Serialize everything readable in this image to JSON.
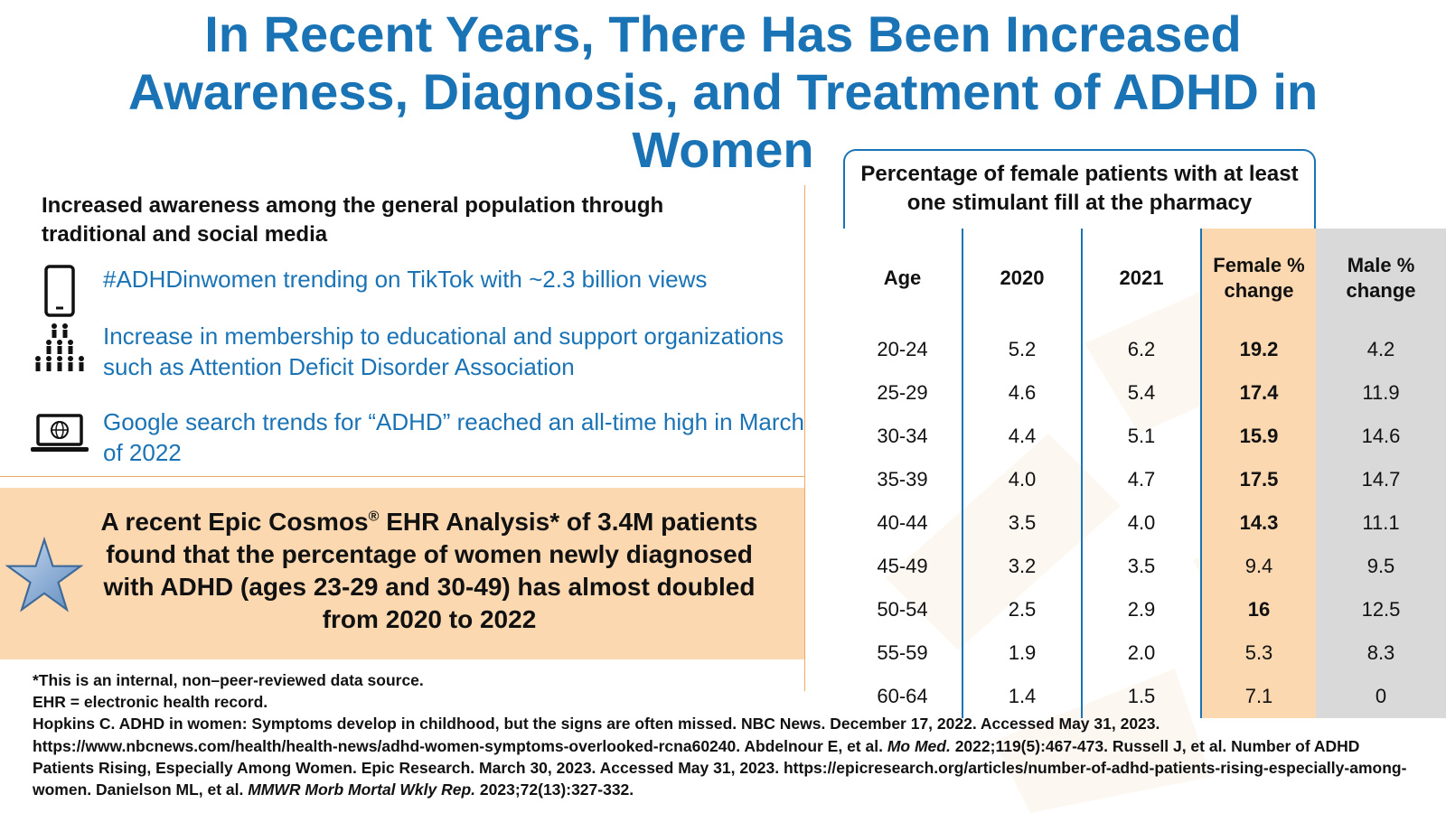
{
  "title": {
    "line1": "In Recent Years, There Has Been Increased",
    "line2": "Awareness, Diagnosis, and Treatment of ADHD in",
    "line3": "Women"
  },
  "awareness": {
    "heading": "Increased awareness among the general population through traditional and social media",
    "bullets": [
      {
        "icon": "smartphone-icon",
        "text": "#ADHDinwomen trending on TikTok with ~2.3 billion views"
      },
      {
        "icon": "people-group-icon",
        "text": "Increase in membership to educational and support organizations such as Attention Deficit Disorder Association"
      },
      {
        "icon": "laptop-globe-icon",
        "text": "Google search trends for “ADHD” reached an all-time high in March of 2022"
      }
    ]
  },
  "epic": {
    "icon": "star-icon",
    "text_before": "A recent Epic Cosmos",
    "registered": "®",
    "text_after": " EHR Analysis* of 3.4M patients found that the percentage of women newly diagnosed with ADHD (ages 23-29 and 30-49) has almost doubled from 2020 to 2022"
  },
  "table": {
    "caption": "Percentage of female patients with at least one stimulant fill at the pharmacy",
    "headers": {
      "age": "Age",
      "y2020": "2020",
      "y2021": "2021",
      "female_change": "Female % change",
      "male_change": "Male % change"
    },
    "rows": [
      {
        "age": "20-24",
        "y2020": "5.2",
        "y2021": "6.2",
        "female": "19.2",
        "male": "4.2"
      },
      {
        "age": "25-29",
        "y2020": "4.6",
        "y2021": "5.4",
        "female": "17.4",
        "male": "11.9"
      },
      {
        "age": "30-34",
        "y2020": "4.4",
        "y2021": "5.1",
        "female": "15.9",
        "male": "14.6"
      },
      {
        "age": "35-39",
        "y2020": "4.0",
        "y2021": "4.7",
        "female": "17.5",
        "male": "14.7"
      },
      {
        "age": "40-44",
        "y2020": "3.5",
        "y2021": "4.0",
        "female": "14.3",
        "male": "11.1"
      },
      {
        "age": "45-49",
        "y2020": "3.2",
        "y2021": "3.5",
        "female": "9.4",
        "male": "9.5"
      },
      {
        "age": "50-54",
        "y2020": "2.5",
        "y2021": "2.9",
        "female": "16",
        "male": "12.5"
      },
      {
        "age": "55-59",
        "y2020": "1.9",
        "y2021": "2.0",
        "female": "5.3",
        "male": "8.3"
      },
      {
        "age": "60-64",
        "y2020": "1.4",
        "y2021": "1.5",
        "female": "7.1",
        "male": "0"
      }
    ],
    "bold_female_rows": [
      0,
      1,
      2,
      3,
      4,
      6
    ]
  },
  "footnotes": {
    "line1": "*This is an internal, non–peer-reviewed data source.",
    "line2": "EHR = electronic health record.",
    "ref1": "Hopkins C. ADHD in women: Symptoms develop in childhood, but the signs are often missed. NBC News. December 17, 2022. Accessed May 31, 2023. https://www.nbcnews.com/health/health-news/adhd-women-symptoms-overlooked-rcna60240. Abdelnour E, et al. ",
    "journal1": "Mo Med.",
    "ref2": " 2022;119(5):467-473. Russell J, et al. Number of ADHD Patients Rising, Especially Among Women. Epic Research. March 30, 2023. Accessed May 31, 2023. https://epicresearch.org/articles/number-of-adhd-patients-rising-especially-among-women. Danielson ML, et al. ",
    "journal2": "MMWR Morb Mortal Wkly Rep.",
    "ref3": " 2023;72(13):327-332."
  },
  "colors": {
    "title_blue": "#1a73b5",
    "accent_peach": "#fcd8b0",
    "male_gray": "#d9d9d9",
    "divider_orange": "#f0a868"
  }
}
